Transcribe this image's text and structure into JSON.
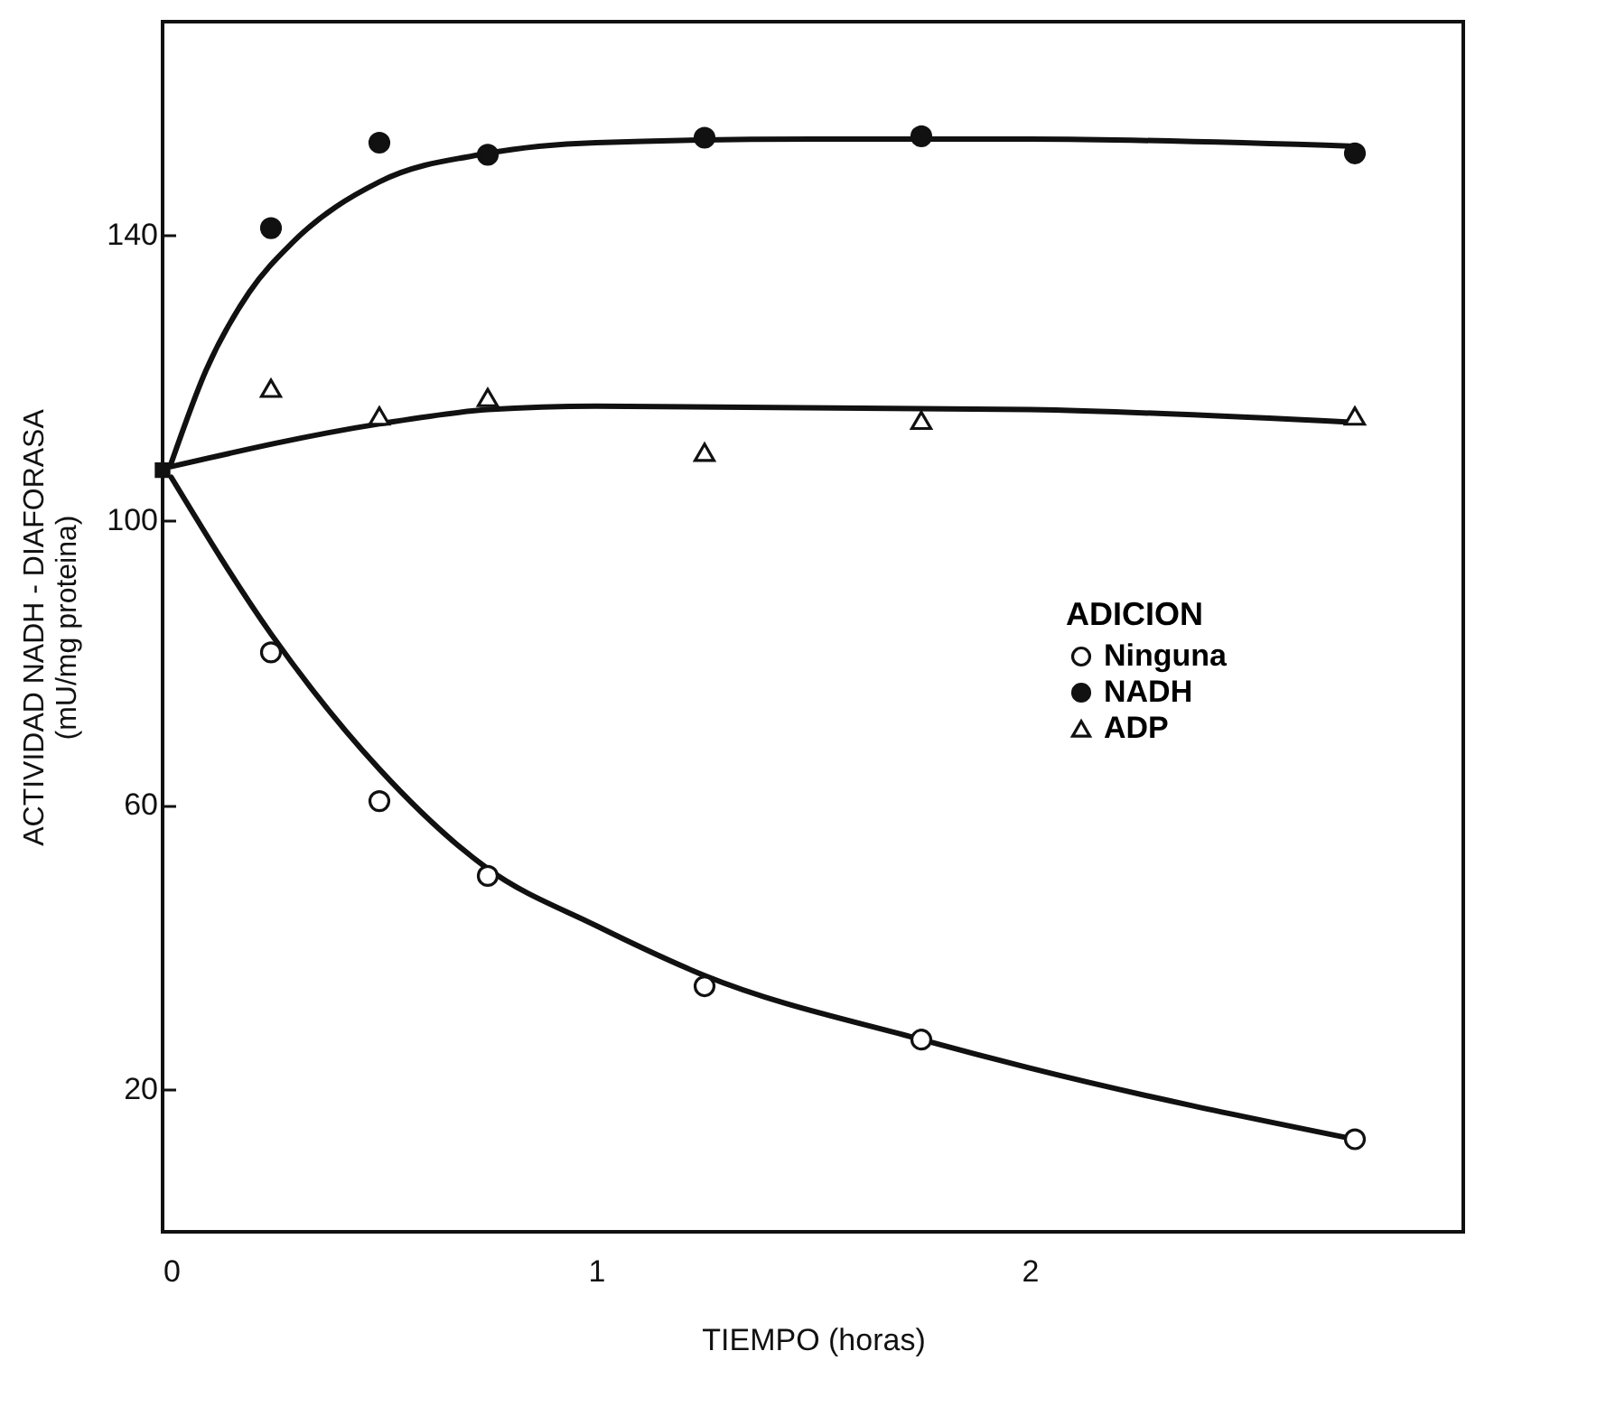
{
  "chart_data": {
    "type": "scatter",
    "xlabel": "TIEMPO (horas)",
    "ylabel": "ACTIVIDAD NADH - DIAFORASA\n(mU/mg proteina)",
    "legend_title": "ADICION",
    "legend": "right",
    "grid": false,
    "xlim": [
      0,
      3
    ],
    "xticks": [
      0,
      1,
      2
    ],
    "ylim": [
      0,
      170
    ],
    "yticks": [
      20,
      60,
      100,
      140
    ],
    "series": [
      {
        "name": "Ninguna",
        "color": "#ffffff",
        "marker": "circle",
        "x": [
          0.25,
          0.5,
          0.75,
          1.25,
          1.75,
          2.75
        ],
        "values": [
          81.4,
          60.5,
          50,
          34.5,
          27,
          13
        ]
      },
      {
        "name": "NADH",
        "color": "#111111",
        "marker": "circle",
        "x": [
          0.25,
          0.5,
          0.75,
          1.25,
          1.75,
          2.75
        ],
        "values": [
          141,
          153,
          151.3,
          153.7,
          153.9,
          151.5
        ]
      },
      {
        "name": "ADP",
        "color": "#ffffff",
        "marker": "triangle",
        "x": [
          0.25,
          0.5,
          0.75,
          1.25,
          1.75,
          2.75
        ],
        "values": [
          118.5,
          114.6,
          117.2,
          109.5,
          114,
          114.6
        ]
      },
      {
        "color": "#111111",
        "marker": "square",
        "x": [
          0
        ],
        "values": [
          107
        ]
      },
      {
        "type": "line",
        "color": "#111111",
        "x": [
          0.02,
          0.25,
          0.5,
          0.75,
          1,
          1.25,
          1.75,
          2,
          2.75
        ],
        "values": [
          106,
          84,
          65,
          51,
          43,
          36,
          27,
          23,
          13
        ]
      },
      {
        "type": "line",
        "color": "#111111",
        "x": [
          0.02,
          0.1,
          0.2,
          0.3,
          0.5,
          0.75,
          1,
          1.5,
          2,
          2.75
        ],
        "values": [
          108,
          121,
          132,
          139,
          147.5,
          151.5,
          153,
          153.5,
          153.5,
          152.5
        ]
      },
      {
        "type": "line",
        "color": "#111111",
        "x": [
          0.02,
          0.5,
          0.75,
          1,
          2,
          2.75
        ],
        "values": [
          107.5,
          113.5,
          115.5,
          116,
          115.5,
          113.7
        ]
      }
    ]
  }
}
